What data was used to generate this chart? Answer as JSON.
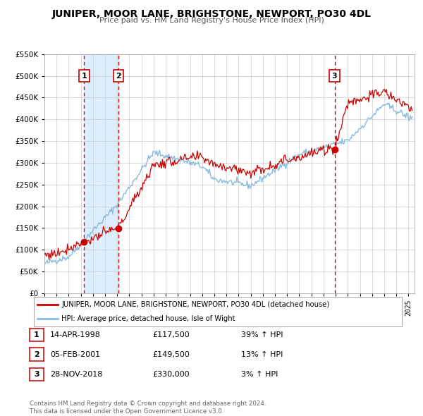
{
  "title": "JUNIPER, MOOR LANE, BRIGHSTONE, NEWPORT, PO30 4DL",
  "subtitle": "Price paid vs. HM Land Registry's House Price Index (HPI)",
  "legend_line1": "JUNIPER, MOOR LANE, BRIGHSTONE, NEWPORT, PO30 4DL (detached house)",
  "legend_line2": "HPI: Average price, detached house, Isle of Wight",
  "sale_color": "#cc0000",
  "hpi_color": "#88bbdd",
  "background_color": "#ffffff",
  "plot_bg_color": "#ffffff",
  "grid_color": "#cccccc",
  "shade_color": "#ddeeff",
  "ylim": [
    0,
    550000
  ],
  "yticks": [
    0,
    50000,
    100000,
    150000,
    200000,
    250000,
    300000,
    350000,
    400000,
    450000,
    500000,
    550000
  ],
  "xlim_start": 1995.0,
  "xlim_end": 2025.5,
  "xticks": [
    1995,
    1996,
    1997,
    1998,
    1999,
    2000,
    2001,
    2002,
    2003,
    2004,
    2005,
    2006,
    2007,
    2008,
    2009,
    2010,
    2011,
    2012,
    2013,
    2014,
    2015,
    2016,
    2017,
    2018,
    2019,
    2020,
    2021,
    2022,
    2023,
    2024,
    2025
  ],
  "sales": [
    {
      "date_num": 1998.28,
      "price": 117500,
      "label": "1"
    },
    {
      "date_num": 2001.09,
      "price": 149500,
      "label": "2"
    },
    {
      "date_num": 2018.91,
      "price": 330000,
      "label": "3"
    }
  ],
  "table_rows": [
    {
      "num": "1",
      "date": "14-APR-1998",
      "price": "£117,500",
      "hpi": "39% ↑ HPI"
    },
    {
      "num": "2",
      "date": "05-FEB-2001",
      "price": "£149,500",
      "hpi": "13% ↑ HPI"
    },
    {
      "num": "3",
      "date": "28-NOV-2018",
      "price": "£330,000",
      "hpi": "3% ↑ HPI"
    }
  ],
  "footer_line1": "Contains HM Land Registry data © Crown copyright and database right 2024.",
  "footer_line2": "This data is licensed under the Open Government Licence v3.0."
}
